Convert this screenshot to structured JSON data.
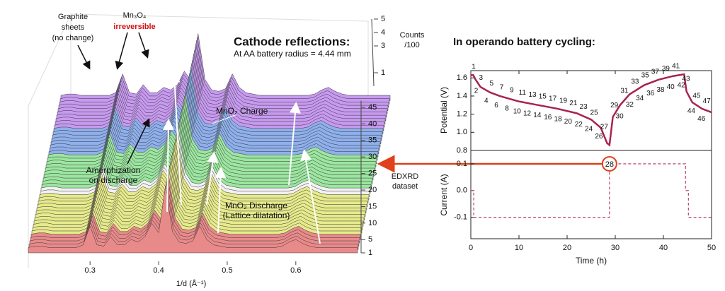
{
  "chart_data": [
    {
      "type": "waterfall",
      "xlabel": "1/d (Å⁻¹)",
      "xlim": [
        0.21,
        0.69
      ],
      "xticks": [
        0.3,
        0.4,
        0.5,
        0.6
      ],
      "x": [
        0.21,
        0.22,
        0.23,
        0.24,
        0.25,
        0.26,
        0.27,
        0.28,
        0.29,
        0.3,
        0.31,
        0.32,
        0.33,
        0.34,
        0.35,
        0.36,
        0.37,
        0.38,
        0.39,
        0.4,
        0.41,
        0.42,
        0.43,
        0.44,
        0.45,
        0.46,
        0.47,
        0.48,
        0.49,
        0.5,
        0.51,
        0.52,
        0.53,
        0.54,
        0.55,
        0.56,
        0.57,
        0.58,
        0.59,
        0.6,
        0.61,
        0.62,
        0.63,
        0.64,
        0.65,
        0.66,
        0.67,
        0.68,
        0.69
      ],
      "values": [
        0.4,
        0.5,
        0.5,
        0.4,
        0.4,
        0.4,
        0.4,
        0.4,
        0.6,
        2.0,
        0.6,
        0.5,
        1.2,
        0.6,
        0.6,
        1.0,
        0.8,
        1.2,
        2.2,
        1.5,
        5.0,
        1.6,
        0.8,
        0.7,
        0.9,
        2.0,
        1.0,
        0.6,
        0.5,
        0.4,
        0.4,
        0.4,
        0.4,
        0.4,
        0.4,
        0.4,
        0.4,
        0.5,
        0.8,
        1.0,
        0.7,
        0.5,
        0.4,
        0.4,
        0.4,
        0.4,
        0.4,
        0.4,
        0.4
      ],
      "dataset_label": [
        "EDXRD",
        "dataset"
      ],
      "dataset_lim": [
        1,
        47
      ],
      "dataset_ticks": [
        1,
        5,
        10,
        15,
        20,
        25,
        30,
        35,
        40,
        45
      ],
      "zlabel": [
        "Counts",
        "/100"
      ],
      "zticks": [
        1,
        3,
        4,
        5
      ],
      "color_bands": [
        {
          "datasets": [
            1,
            5
          ],
          "color": "#e98a8a"
        },
        {
          "datasets": [
            6,
            17
          ],
          "color": "#e6ea8c"
        },
        {
          "datasets": [
            18,
            19
          ],
          "color": "#f2f2f2"
        },
        {
          "datasets": [
            20,
            29
          ],
          "color": "#9ce6a0"
        },
        {
          "datasets": [
            30,
            37
          ],
          "color": "#8fb0ec"
        },
        {
          "datasets": [
            38,
            47
          ],
          "color": "#c79af0"
        }
      ],
      "annotations": {
        "graphite": [
          "Graphite",
          "sheets",
          "(no change)"
        ],
        "mn3o4": "Mn₃O₄",
        "irreversible": "irreversible",
        "cathode_title": "Cathode reflections:",
        "cathode_sub": "At AA battery radius = 4.44 mm",
        "charge": "MnO₂ Charge",
        "amorph": [
          "Amorphization",
          "on discharge"
        ],
        "discharge": [
          "MnO₂ Discharge",
          "(Lattice dilatation)"
        ]
      }
    },
    {
      "type": "line",
      "title": "In operando battery cycling:",
      "ylabel": "Potential (V)",
      "color": "#a8234f",
      "xlim": [
        0,
        50
      ],
      "ylim": [
        0.8,
        1.68
      ],
      "yticks": [
        0.8,
        {
          "value": 1.0,
          "label": "1.0"
        },
        1.2,
        1.4,
        1.6
      ],
      "x": [
        0,
        0.5,
        1,
        2,
        4,
        6,
        8,
        10,
        14,
        18,
        22,
        25,
        27,
        28.3,
        28.8,
        29.5,
        31,
        33,
        36,
        39,
        42,
        44.3,
        44.8,
        46,
        48,
        50
      ],
      "values": [
        1.63,
        1.63,
        1.58,
        1.5,
        1.44,
        1.4,
        1.37,
        1.34,
        1.3,
        1.26,
        1.21,
        1.14,
        1.05,
        0.88,
        0.86,
        1.17,
        1.3,
        1.42,
        1.52,
        1.58,
        1.62,
        1.64,
        1.45,
        1.33,
        1.26,
        1.22
      ],
      "dataset_x": [
        0.6,
        1.1,
        2.1,
        3.2,
        4.3,
        5.3,
        6.4,
        7.5,
        8.5,
        9.6,
        10.7,
        11.7,
        12.8,
        13.8,
        14.9,
        16,
        17,
        18.1,
        19.2,
        20.2,
        21.3,
        22.4,
        23.4,
        24.5,
        25.6,
        26.6,
        27.7,
        29.8,
        30.9,
        31.9,
        33,
        34.1,
        35.1,
        36.2,
        37.3,
        38.3,
        39.4,
        40.5,
        41.5,
        42.6,
        43.7,
        44.7,
        45.8,
        46.9,
        47.9,
        49
      ],
      "dataset_labels": [
        1,
        2,
        3,
        4,
        5,
        6,
        7,
        8,
        9,
        10,
        11,
        12,
        13,
        14,
        15,
        16,
        17,
        18,
        19,
        20,
        21,
        22,
        23,
        24,
        25,
        26,
        27,
        29,
        30,
        31,
        32,
        33,
        34,
        35,
        36,
        37,
        38,
        39,
        40,
        41,
        42,
        43,
        44,
        45,
        46,
        47
      ]
    },
    {
      "type": "step",
      "ylabel": "Current (A)",
      "xlabel": "Time (h)",
      "color": "#c0507a",
      "xlim": [
        0,
        50
      ],
      "xticks": [
        0,
        10,
        20,
        30,
        40,
        50
      ],
      "ylim": [
        -0.18,
        0.15
      ],
      "yticks": [
        -0.1,
        {
          "value": 0,
          "label": "0.0"
        },
        0.1
      ],
      "x": [
        0,
        0.6,
        0.6,
        28.8,
        28.8,
        44.6,
        44.6,
        45.2,
        45.2,
        50
      ],
      "values": [
        0,
        0,
        -0.1,
        -0.1,
        0.1,
        0.1,
        0,
        0,
        -0.1,
        -0.1
      ],
      "highlight": {
        "label": 28,
        "x": 28.8,
        "y": 0.1
      }
    }
  ]
}
